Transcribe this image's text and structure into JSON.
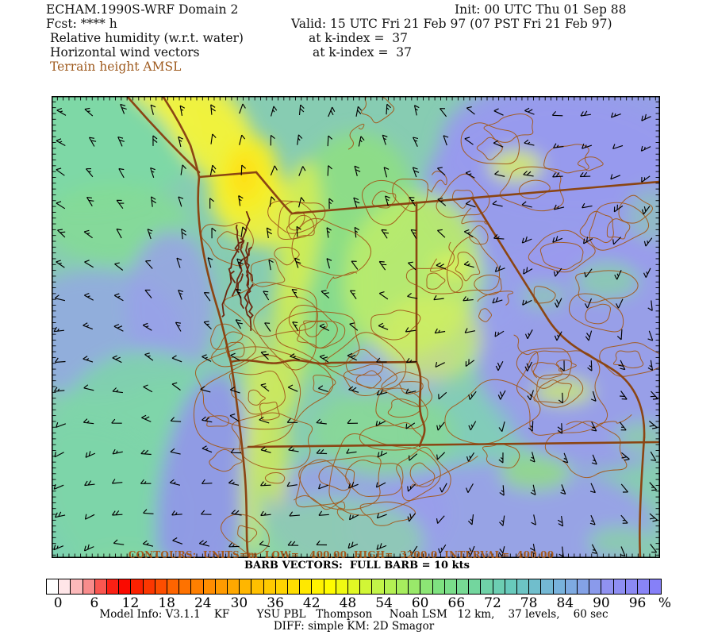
{
  "header": {
    "title": "ECHAM.1990S-WRF Domain 2",
    "init": "Init: 00 UTC Thu 01 Sep 88",
    "fcst": "Fcst: **** h",
    "valid": "Valid: 15 UTC Fri 21 Feb 97 (07 PST Fri 21 Feb 97)",
    "field1": "Relative humidity (w.r.t. water)",
    "field1_level": "at k-index =  37",
    "field2": "Horizontal wind vectors",
    "field2_level": "at k-index =  37",
    "field3": "Terrain height AMSL",
    "terrain_text_color": "#9e5a1e"
  },
  "map": {
    "contours_label": "CONTOURS:  UNITS=m  LOW=   400.00  HIGH=  3200.0  INTERVAL=  400.00",
    "barbs_label": "BARB VECTORS:  FULL BARB = 10 kts",
    "state_border_color": "#8b4513",
    "terrain_contour_color": "#a35a1a",
    "coast_detail_color": "#6c2810",
    "wind_barb_color": "#000000"
  },
  "colorbar": {
    "labels": [
      "0",
      "6",
      "12",
      "18",
      "24",
      "30",
      "36",
      "42",
      "48",
      "54",
      "60",
      "66",
      "72",
      "78",
      "84",
      "90",
      "96"
    ],
    "unit": "%",
    "cells": 51,
    "stops": [
      {
        "i": 0,
        "c": "#ffffff"
      },
      {
        "i": 1,
        "c": "#ffe6e8"
      },
      {
        "i": 3,
        "c": "#f88c8c"
      },
      {
        "i": 5,
        "c": "#fb2014"
      },
      {
        "i": 6,
        "c": "#fa0a00"
      },
      {
        "i": 10,
        "c": "#fe6400"
      },
      {
        "i": 16,
        "c": "#ffb600"
      },
      {
        "i": 23,
        "c": "#fffc00"
      },
      {
        "i": 27,
        "c": "#c2f448"
      },
      {
        "i": 32,
        "c": "#7ee280"
      },
      {
        "i": 38,
        "c": "#68cabc"
      },
      {
        "i": 42,
        "c": "#78b2dc"
      },
      {
        "i": 46,
        "c": "#9092f0"
      },
      {
        "i": 50,
        "c": "#8680f8"
      }
    ]
  },
  "footer": {
    "line1": "Model Info: V3.1.1    KF        YSU PBL   Thompson     Noah LSM   12 km,    37 levels,    60 sec",
    "line2": "DIFF: simple KM: 2D Smagor"
  },
  "chart_data": {
    "type": "heatmap",
    "title": "ECHAM.1990S-WRF Domain 2",
    "forecast_hour": "**** h",
    "init_time": "00 UTC Thu 01 Sep 88",
    "valid_time": "15 UTC Fri 21 Feb 97 (07 PST Fri 21 Feb 97)",
    "layers": [
      {
        "name": "Relative humidity (w.r.t. water)",
        "render": "color_fill",
        "level": "k-index = 37",
        "unit": "%",
        "scale_min": 0,
        "scale_max": 100,
        "cell_step": 2,
        "label_step": 6,
        "colorbar_labels": [
          0,
          6,
          12,
          18,
          24,
          30,
          36,
          42,
          48,
          54,
          60,
          66,
          72,
          78,
          84,
          90,
          96
        ]
      },
      {
        "name": "Horizontal wind vectors",
        "render": "wind_barbs",
        "level": "k-index = 37",
        "legend": "FULL BARB = 10 kts"
      },
      {
        "name": "Terrain height AMSL",
        "render": "contours",
        "unit": "m",
        "low": 400.0,
        "high": 3200.0,
        "interval": 400.0
      }
    ],
    "model_info": {
      "version": "V3.1.1",
      "cumulus": "KF",
      "pbl": "YSU PBL",
      "microphysics": "Thompson",
      "lsm": "Noah LSM",
      "grid": "12 km",
      "levels": "37 levels",
      "timestep": "60 sec",
      "diffusion": "DIFF: simple KM: 2D Smagor"
    },
    "legend_position": "bottom",
    "grid": false
  }
}
